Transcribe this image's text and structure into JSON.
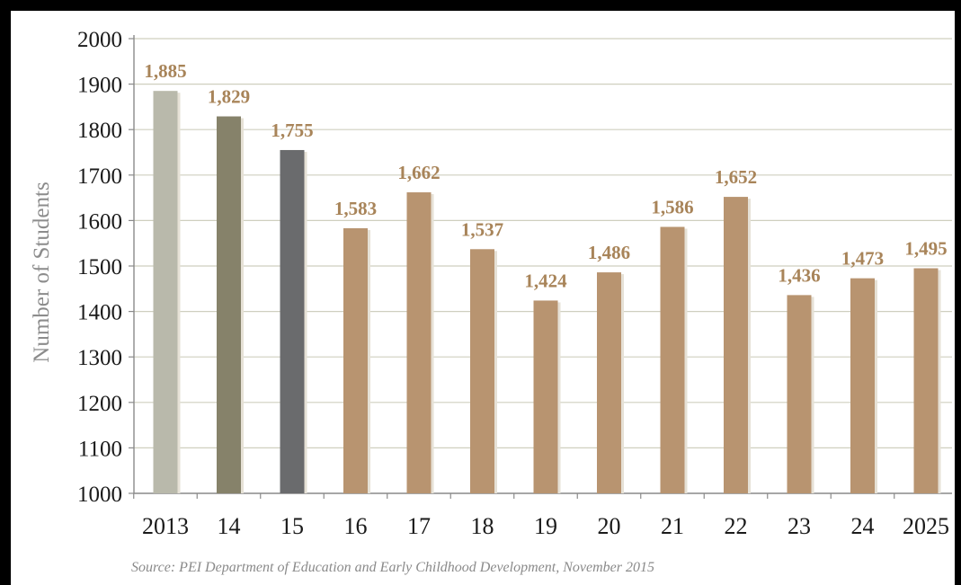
{
  "chart_data": {
    "type": "bar",
    "categories": [
      "2013",
      "14",
      "15",
      "16",
      "17",
      "18",
      "19",
      "20",
      "21",
      "22",
      "23",
      "24",
      "2025"
    ],
    "values": [
      1885,
      1829,
      1755,
      1583,
      1662,
      1537,
      1424,
      1486,
      1586,
      1652,
      1436,
      1473,
      1495
    ],
    "value_labels": [
      "1,885",
      "1,829",
      "1,755",
      "1,583",
      "1,662",
      "1,537",
      "1,424",
      "1,486",
      "1,586",
      "1,652",
      "1,436",
      "1,473",
      "1,495"
    ],
    "bar_colors": [
      "#b9b9ab",
      "#86826a",
      "#6a6b6d",
      "#b89470",
      "#b89470",
      "#b89470",
      "#b89470",
      "#b89470",
      "#b89470",
      "#b89470",
      "#b89470",
      "#b89470",
      "#b89470"
    ],
    "ylabel": "Number of Students",
    "xlabel": "",
    "ylim": [
      1000,
      2000
    ],
    "yticks": [
      "1000",
      "1100",
      "1200",
      "1300",
      "1400",
      "1500",
      "1600",
      "1700",
      "1800",
      "1900",
      "2000"
    ],
    "grid": true,
    "legend": false,
    "source": "Source: PEI Department of Education and Early Childhood Development, November 2015"
  },
  "colors": {
    "grid": "#cfcfbf",
    "label": "#a88459",
    "axis": "#8a8a8a"
  }
}
